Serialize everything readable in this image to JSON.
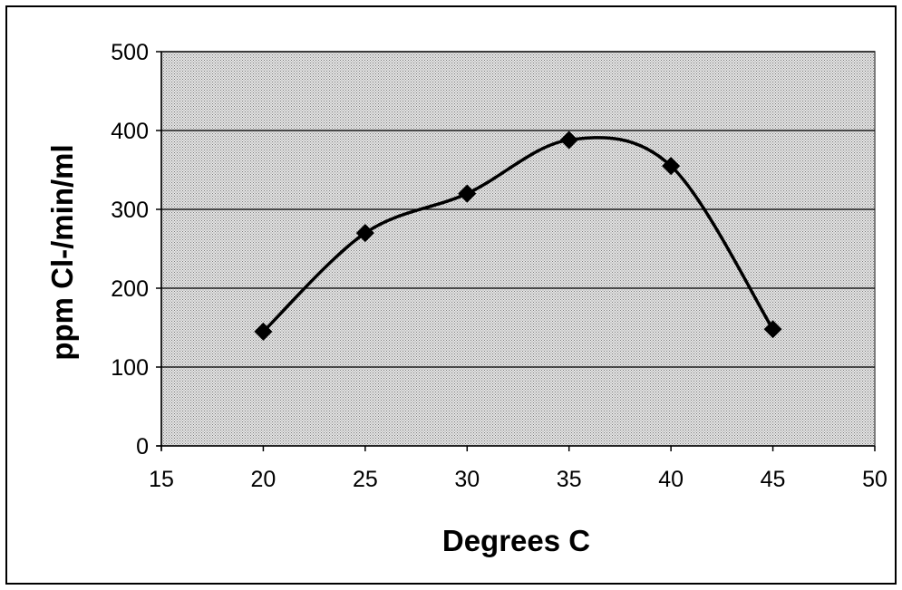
{
  "chart_data": {
    "type": "line",
    "xlabel": "Degrees C",
    "ylabel": "ppm Cl-/min/ml",
    "xlim": [
      15,
      50
    ],
    "ylim": [
      0,
      500
    ],
    "xticks": [
      "15",
      "20",
      "25",
      "30",
      "35",
      "40",
      "45",
      "50"
    ],
    "yticks": [
      "0",
      "100",
      "200",
      "300",
      "400",
      "500"
    ],
    "grid": "horizontal",
    "smoothed": true,
    "marker": "diamond",
    "series": [
      {
        "x": [
          20,
          25,
          30,
          35,
          40,
          45
        ],
        "values": [
          145,
          270,
          320,
          388,
          355,
          148
        ]
      }
    ],
    "colors": {
      "line": "#000000",
      "plot_background": "#c8c8c8"
    }
  }
}
